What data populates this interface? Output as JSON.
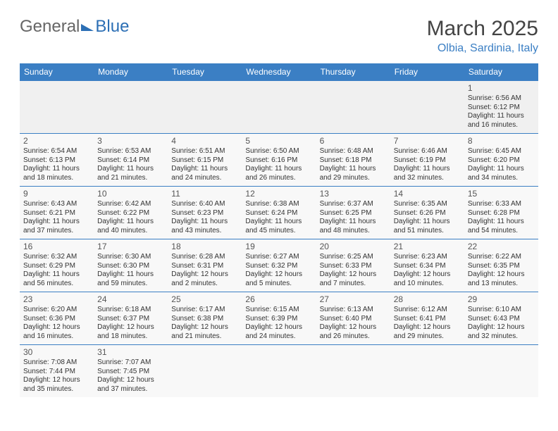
{
  "logo": {
    "part1": "General",
    "part2": "Blue"
  },
  "title": "March 2025",
  "location": "Olbia, Sardinia, Italy",
  "weekdays": [
    "Sunday",
    "Monday",
    "Tuesday",
    "Wednesday",
    "Thursday",
    "Friday",
    "Saturday"
  ],
  "colors": {
    "header_bg": "#3b7fc4",
    "header_text": "#ffffff",
    "accent": "#3b7fc4",
    "title_text": "#444444",
    "logo_text": "#666666"
  },
  "calendar": {
    "leading_blank": 6,
    "days": [
      {
        "n": 1,
        "sunrise": "6:56 AM",
        "sunset": "6:12 PM",
        "daylight": "11 hours and 16 minutes."
      },
      {
        "n": 2,
        "sunrise": "6:54 AM",
        "sunset": "6:13 PM",
        "daylight": "11 hours and 18 minutes."
      },
      {
        "n": 3,
        "sunrise": "6:53 AM",
        "sunset": "6:14 PM",
        "daylight": "11 hours and 21 minutes."
      },
      {
        "n": 4,
        "sunrise": "6:51 AM",
        "sunset": "6:15 PM",
        "daylight": "11 hours and 24 minutes."
      },
      {
        "n": 5,
        "sunrise": "6:50 AM",
        "sunset": "6:16 PM",
        "daylight": "11 hours and 26 minutes."
      },
      {
        "n": 6,
        "sunrise": "6:48 AM",
        "sunset": "6:18 PM",
        "daylight": "11 hours and 29 minutes."
      },
      {
        "n": 7,
        "sunrise": "6:46 AM",
        "sunset": "6:19 PM",
        "daylight": "11 hours and 32 minutes."
      },
      {
        "n": 8,
        "sunrise": "6:45 AM",
        "sunset": "6:20 PM",
        "daylight": "11 hours and 34 minutes."
      },
      {
        "n": 9,
        "sunrise": "6:43 AM",
        "sunset": "6:21 PM",
        "daylight": "11 hours and 37 minutes."
      },
      {
        "n": 10,
        "sunrise": "6:42 AM",
        "sunset": "6:22 PM",
        "daylight": "11 hours and 40 minutes."
      },
      {
        "n": 11,
        "sunrise": "6:40 AM",
        "sunset": "6:23 PM",
        "daylight": "11 hours and 43 minutes."
      },
      {
        "n": 12,
        "sunrise": "6:38 AM",
        "sunset": "6:24 PM",
        "daylight": "11 hours and 45 minutes."
      },
      {
        "n": 13,
        "sunrise": "6:37 AM",
        "sunset": "6:25 PM",
        "daylight": "11 hours and 48 minutes."
      },
      {
        "n": 14,
        "sunrise": "6:35 AM",
        "sunset": "6:26 PM",
        "daylight": "11 hours and 51 minutes."
      },
      {
        "n": 15,
        "sunrise": "6:33 AM",
        "sunset": "6:28 PM",
        "daylight": "11 hours and 54 minutes."
      },
      {
        "n": 16,
        "sunrise": "6:32 AM",
        "sunset": "6:29 PM",
        "daylight": "11 hours and 56 minutes."
      },
      {
        "n": 17,
        "sunrise": "6:30 AM",
        "sunset": "6:30 PM",
        "daylight": "11 hours and 59 minutes."
      },
      {
        "n": 18,
        "sunrise": "6:28 AM",
        "sunset": "6:31 PM",
        "daylight": "12 hours and 2 minutes."
      },
      {
        "n": 19,
        "sunrise": "6:27 AM",
        "sunset": "6:32 PM",
        "daylight": "12 hours and 5 minutes."
      },
      {
        "n": 20,
        "sunrise": "6:25 AM",
        "sunset": "6:33 PM",
        "daylight": "12 hours and 7 minutes."
      },
      {
        "n": 21,
        "sunrise": "6:23 AM",
        "sunset": "6:34 PM",
        "daylight": "12 hours and 10 minutes."
      },
      {
        "n": 22,
        "sunrise": "6:22 AM",
        "sunset": "6:35 PM",
        "daylight": "12 hours and 13 minutes."
      },
      {
        "n": 23,
        "sunrise": "6:20 AM",
        "sunset": "6:36 PM",
        "daylight": "12 hours and 16 minutes."
      },
      {
        "n": 24,
        "sunrise": "6:18 AM",
        "sunset": "6:37 PM",
        "daylight": "12 hours and 18 minutes."
      },
      {
        "n": 25,
        "sunrise": "6:17 AM",
        "sunset": "6:38 PM",
        "daylight": "12 hours and 21 minutes."
      },
      {
        "n": 26,
        "sunrise": "6:15 AM",
        "sunset": "6:39 PM",
        "daylight": "12 hours and 24 minutes."
      },
      {
        "n": 27,
        "sunrise": "6:13 AM",
        "sunset": "6:40 PM",
        "daylight": "12 hours and 26 minutes."
      },
      {
        "n": 28,
        "sunrise": "6:12 AM",
        "sunset": "6:41 PM",
        "daylight": "12 hours and 29 minutes."
      },
      {
        "n": 29,
        "sunrise": "6:10 AM",
        "sunset": "6:43 PM",
        "daylight": "12 hours and 32 minutes."
      },
      {
        "n": 30,
        "sunrise": "7:08 AM",
        "sunset": "7:44 PM",
        "daylight": "12 hours and 35 minutes."
      },
      {
        "n": 31,
        "sunrise": "7:07 AM",
        "sunset": "7:45 PM",
        "daylight": "12 hours and 37 minutes."
      }
    ],
    "labels": {
      "sunrise_prefix": "Sunrise: ",
      "sunset_prefix": "Sunset: ",
      "daylight_prefix": "Daylight: "
    }
  }
}
